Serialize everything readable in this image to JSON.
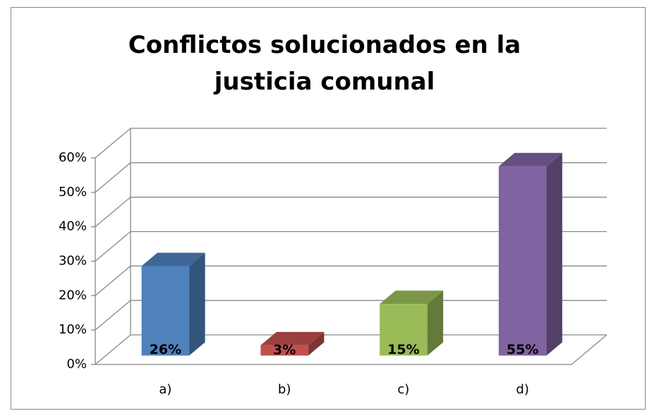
{
  "chart_data": {
    "type": "bar3d",
    "title": "Conflictos solucionados en la justicia comunal",
    "categories": [
      "a)",
      "b)",
      "c)",
      "d)"
    ],
    "values": [
      26,
      3,
      15,
      55
    ],
    "value_labels": [
      "26%",
      "3%",
      "15%",
      "55%"
    ],
    "colors": [
      "#4f81bd",
      "#c0504d",
      "#9bbb59",
      "#8064a2"
    ],
    "ylim": [
      0,
      60
    ],
    "yticks": [
      {
        "value": 0,
        "label": "0%"
      },
      {
        "value": 10,
        "label": "10%"
      },
      {
        "value": 20,
        "label": "20%"
      },
      {
        "value": 30,
        "label": "30%"
      },
      {
        "value": 40,
        "label": "40%"
      },
      {
        "value": 50,
        "label": "50%"
      },
      {
        "value": 60,
        "label": "60%"
      }
    ],
    "grid": true
  }
}
